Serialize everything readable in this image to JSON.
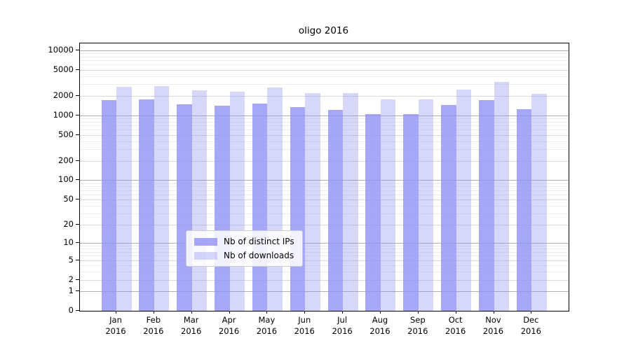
{
  "figure": {
    "title": "oligo 2016"
  },
  "colors": {
    "ips_fill_hex": "#a7a7f7",
    "downloads_fill_hex": "#d8d8fa",
    "ips_fill_rgba": "rgba(145,145,245,0.80)",
    "downloads_fill_rgba": "rgba(144,144,241,0.36)",
    "grid_power10": "#b0b0b0",
    "grid_labeled": "#d9d9d9",
    "grid_minor": "#ededed",
    "spine": "#000000"
  },
  "chart_data": {
    "type": "bar",
    "title": "oligo 2016",
    "categories": [
      "Jan 2016",
      "Feb 2016",
      "Mar 2016",
      "Apr 2016",
      "May 2016",
      "Jun 2016",
      "Jul 2016",
      "Aug 2016",
      "Sep 2016",
      "Oct 2016",
      "Nov 2016",
      "Dec 2016"
    ],
    "series": [
      {
        "name": "Nb of distinct IPs",
        "values": [
          1690,
          1770,
          1460,
          1390,
          1500,
          1320,
          1200,
          1040,
          1050,
          1430,
          1700,
          1230
        ]
      },
      {
        "name": "Nb of downloads",
        "values": [
          2700,
          2770,
          2390,
          2270,
          2650,
          2160,
          2200,
          1740,
          1730,
          2460,
          3270,
          2140
        ]
      }
    ],
    "xlabel": "",
    "ylabel": "",
    "yscale": "log1p",
    "yticks": [
      0,
      1,
      2,
      5,
      10,
      20,
      50,
      100,
      200,
      500,
      1000,
      2000,
      5000,
      10000
    ],
    "ylim": [
      0,
      12700
    ],
    "grid": true,
    "legend_position": "lower center"
  }
}
